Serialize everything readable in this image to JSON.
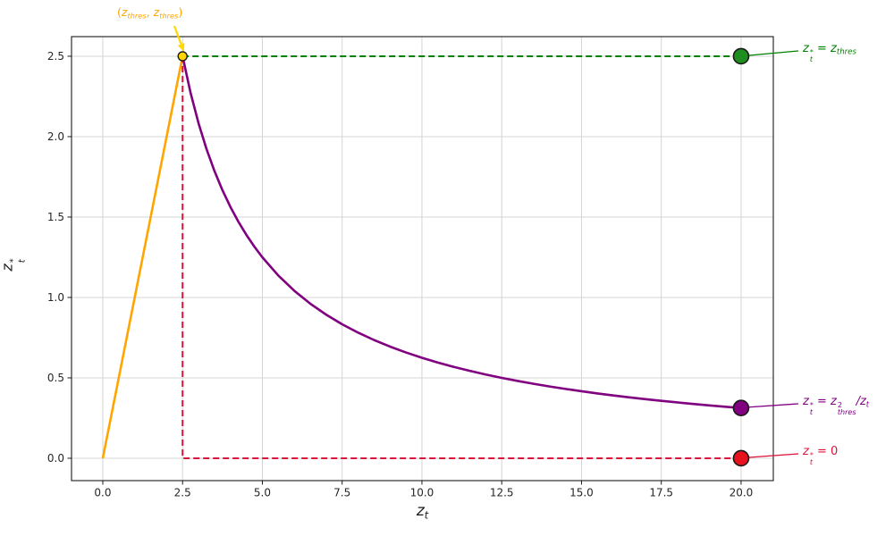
{
  "figure": {
    "background": "#ffffff",
    "grid_color": "#d4d4d4",
    "spine_color": "#1a1a1a",
    "tick_label_color": "#262626",
    "tick_font_size": 12
  },
  "chart_data": {
    "type": "line",
    "title": "",
    "xlabel_text": "z_t",
    "ylabel_text": "z_t^*",
    "xlabel_parts": [
      {
        "v": "z",
        "it": true
      },
      {
        "sub": "t"
      }
    ],
    "ylabel_parts": [
      {
        "v": "z",
        "it": true
      },
      {
        "sup": "*",
        "sub": "t"
      }
    ],
    "xlim": [
      -0.98,
      21.01
    ],
    "ylim": [
      -0.139,
      2.622
    ],
    "grid": true,
    "z_thres": 2.5,
    "x_ticks": [
      {
        "v": 0,
        "label": "0.0"
      },
      {
        "v": 2.5,
        "label": "2.5"
      },
      {
        "v": 5,
        "label": "5.0"
      },
      {
        "v": 7.5,
        "label": "7.5"
      },
      {
        "v": 10,
        "label": "10.0"
      },
      {
        "v": 12.5,
        "label": "12.5"
      },
      {
        "v": 15,
        "label": "15.0"
      },
      {
        "v": 17.5,
        "label": "17.5"
      },
      {
        "v": 20,
        "label": "20.0"
      }
    ],
    "y_ticks": [
      {
        "v": 0,
        "label": "0.0"
      },
      {
        "v": 0.5,
        "label": "0.5"
      },
      {
        "v": 1,
        "label": "1.0"
      },
      {
        "v": 1.5,
        "label": "1.5"
      },
      {
        "v": 2,
        "label": "2.0"
      },
      {
        "v": 2.5,
        "label": "2.5"
      }
    ],
    "series": [
      {
        "name": "identity-segment",
        "formula": "z_t^* = z_t for z_t <= z_thres",
        "color": "#FFA500",
        "dash": "",
        "width": 2.6,
        "points": [
          [
            0,
            0
          ],
          [
            2.5,
            2.5
          ]
        ]
      },
      {
        "name": "inverse-decay-curve",
        "formula": "z_t^* = z_thres^2 / z_t for z_t > z_thres",
        "color": "#800080",
        "dash": "",
        "width": 2.6,
        "points": [
          [
            2.5,
            2.5
          ],
          [
            2.75,
            2.2727
          ],
          [
            3,
            2.0833
          ],
          [
            3.25,
            1.9231
          ],
          [
            3.5,
            1.7857
          ],
          [
            3.75,
            1.6667
          ],
          [
            4,
            1.5625
          ],
          [
            4.25,
            1.4706
          ],
          [
            4.5,
            1.3889
          ],
          [
            4.75,
            1.3158
          ],
          [
            5,
            1.25
          ],
          [
            5.5,
            1.1364
          ],
          [
            6,
            1.0417
          ],
          [
            6.5,
            0.9615
          ],
          [
            7,
            0.8929
          ],
          [
            7.5,
            0.8333
          ],
          [
            8,
            0.7813
          ],
          [
            8.5,
            0.7353
          ],
          [
            9,
            0.6944
          ],
          [
            9.5,
            0.6579
          ],
          [
            10,
            0.625
          ],
          [
            10.5,
            0.5952
          ],
          [
            11,
            0.5682
          ],
          [
            11.5,
            0.5435
          ],
          [
            12,
            0.5208
          ],
          [
            12.5,
            0.5
          ],
          [
            13,
            0.4808
          ],
          [
            13.5,
            0.463
          ],
          [
            14,
            0.4464
          ],
          [
            14.5,
            0.431
          ],
          [
            15,
            0.4167
          ],
          [
            15.5,
            0.4032
          ],
          [
            16,
            0.3906
          ],
          [
            16.5,
            0.3788
          ],
          [
            17,
            0.3676
          ],
          [
            17.5,
            0.3571
          ],
          [
            18,
            0.3472
          ],
          [
            18.5,
            0.3378
          ],
          [
            19,
            0.3289
          ],
          [
            19.5,
            0.3205
          ],
          [
            20,
            0.3125
          ]
        ]
      },
      {
        "name": "threshold-dashed-line",
        "formula": "z_t^* = z_thres",
        "color": "#008000",
        "dash": "7,4",
        "width": 2,
        "points": [
          [
            2.5,
            2.5
          ],
          [
            20,
            2.5
          ]
        ]
      },
      {
        "name": "zero-dashed-line",
        "formula": "z_t^* = 0",
        "color": "#DC143C",
        "dash": "7,4",
        "width": 2,
        "points": [
          [
            2.5,
            2.5
          ],
          [
            2.5,
            0
          ],
          [
            20,
            0
          ]
        ]
      }
    ],
    "markers": [
      {
        "name": "threshold-point",
        "x": 2.5,
        "y": 2.5,
        "fill": "#FFD700",
        "edge": "#1a1a1a",
        "r": 5,
        "edge_width": 1.4
      },
      {
        "name": "green-endpoint",
        "x": 20,
        "y": 2.5,
        "fill": "#1e8f1e",
        "edge": "#1a1a1a",
        "r": 8.5,
        "edge_width": 1.6
      },
      {
        "name": "purple-endpoint",
        "x": 20,
        "y": 0.3125,
        "fill": "#800080",
        "edge": "#1a1a1a",
        "r": 8.5,
        "edge_width": 1.6
      },
      {
        "name": "red-endpoint",
        "x": 20,
        "y": 0,
        "fill": "#E8121E",
        "edge": "#1a1a1a",
        "r": 8.5,
        "edge_width": 1.6
      }
    ]
  },
  "annotations": {
    "peak": {
      "text": "(z_thres, z_thres)",
      "color": "#FFA500",
      "arrow_color": "#FFD700",
      "parts": [
        {
          "v": "("
        },
        {
          "v": "z",
          "it": true
        },
        {
          "sub": "thres"
        },
        {
          "v": ", "
        },
        {
          "v": "z",
          "it": true
        },
        {
          "sub": "thres"
        },
        {
          "v": ")"
        }
      ]
    },
    "green_label": {
      "text": "z_t^* = z_thres",
      "color": "#008000",
      "parts": [
        {
          "v": "z",
          "it": true
        },
        {
          "sup": "*",
          "sub": "t"
        },
        {
          "v": " = "
        },
        {
          "v": "z",
          "it": true
        },
        {
          "sub": "thres"
        }
      ]
    },
    "purple_label": {
      "text": "z_t^* = z_thres^2/z_t",
      "color": "#800080",
      "parts": [
        {
          "v": "z",
          "it": true
        },
        {
          "sup": "*",
          "sub": "t"
        },
        {
          "v": " = "
        },
        {
          "v": "z",
          "it": true
        },
        {
          "sup": "2",
          "sub": "thres"
        },
        {
          "v": "/",
          "it": true
        },
        {
          "v": "z",
          "it": true
        },
        {
          "sub": "t"
        }
      ]
    },
    "red_label": {
      "text": "z_t^* = 0",
      "color": "#DC143C",
      "parts": [
        {
          "v": "z",
          "it": true
        },
        {
          "sup": "*",
          "sub": "t"
        },
        {
          "v": " = 0"
        }
      ]
    }
  }
}
